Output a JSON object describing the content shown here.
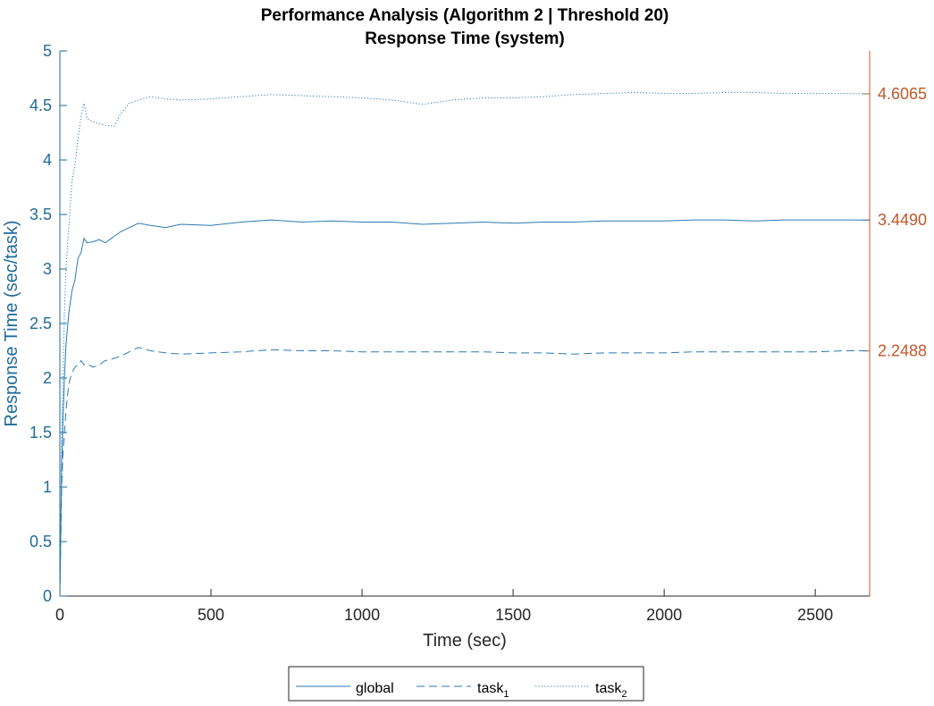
{
  "colors": {
    "series": "#2a7ab3",
    "left_axis": "#1f6b9a",
    "right_axis": "#c0582a",
    "bottom_axis": "#262626"
  },
  "chart_data": {
    "type": "line",
    "title": "Performance Analysis (Algorithm 2 | Threshold 20)",
    "subtitle": "Response Time (system)",
    "xlabel": "Time (sec)",
    "ylabel": "Response Time (sec/task)",
    "xlim": [
      0,
      2680
    ],
    "ylim": [
      0,
      5
    ],
    "grid": false,
    "legend_position": "bottom-outside",
    "x_ticks": [
      0,
      500,
      1000,
      1500,
      2000,
      2500
    ],
    "x_tick_labels": [
      "0",
      "500",
      "1000",
      "1500",
      "2000",
      "2500"
    ],
    "y_ticks": [
      0,
      0.5,
      1,
      1.5,
      2,
      2.5,
      3,
      3.5,
      4,
      4.5,
      5
    ],
    "y_tick_labels": [
      "0",
      "0.5",
      "1",
      "1.5",
      "2",
      "2.5",
      "3",
      "3.5",
      "4",
      "4.5",
      "5"
    ],
    "right_axis": {
      "ticks": [
        2.2488,
        3.449,
        4.6065
      ],
      "tick_labels": [
        "2.2488",
        "3.4490",
        "4.6065"
      ]
    },
    "series": [
      {
        "name": "global",
        "style": "solid",
        "x": [
          0,
          3,
          6,
          10,
          15,
          20,
          30,
          40,
          50,
          60,
          70,
          80,
          90,
          110,
          130,
          150,
          180,
          200,
          230,
          260,
          300,
          350,
          400,
          500,
          600,
          700,
          800,
          900,
          1000,
          1100,
          1200,
          1300,
          1400,
          1500,
          1600,
          1700,
          1800,
          1900,
          2000,
          2100,
          2200,
          2300,
          2400,
          2500,
          2600,
          2680
        ],
        "y": [
          0,
          0.6,
          1.2,
          1.6,
          2.0,
          2.3,
          2.6,
          2.8,
          2.9,
          3.1,
          3.15,
          3.28,
          3.24,
          3.25,
          3.27,
          3.24,
          3.3,
          3.34,
          3.38,
          3.42,
          3.4,
          3.38,
          3.41,
          3.4,
          3.43,
          3.45,
          3.43,
          3.44,
          3.43,
          3.43,
          3.41,
          3.42,
          3.43,
          3.42,
          3.43,
          3.43,
          3.44,
          3.44,
          3.44,
          3.45,
          3.45,
          3.44,
          3.45,
          3.45,
          3.45,
          3.449
        ]
      },
      {
        "name": "task_1",
        "legend_base": "task",
        "legend_sub": "1",
        "style": "dashed",
        "x": [
          0,
          3,
          6,
          10,
          15,
          20,
          30,
          40,
          50,
          60,
          70,
          80,
          90,
          110,
          130,
          150,
          180,
          200,
          230,
          260,
          300,
          350,
          400,
          500,
          600,
          700,
          800,
          900,
          1000,
          1100,
          1200,
          1300,
          1400,
          1500,
          1600,
          1700,
          1800,
          1900,
          2000,
          2100,
          2200,
          2300,
          2400,
          2500,
          2600,
          2680
        ],
        "y": [
          0,
          0.5,
          1.0,
          1.3,
          1.5,
          1.7,
          1.95,
          2.05,
          2.1,
          2.12,
          2.16,
          2.12,
          2.13,
          2.1,
          2.12,
          2.16,
          2.18,
          2.2,
          2.24,
          2.28,
          2.25,
          2.23,
          2.22,
          2.23,
          2.24,
          2.26,
          2.25,
          2.25,
          2.24,
          2.24,
          2.24,
          2.24,
          2.24,
          2.23,
          2.23,
          2.22,
          2.23,
          2.23,
          2.23,
          2.24,
          2.24,
          2.24,
          2.24,
          2.24,
          2.25,
          2.2488
        ]
      },
      {
        "name": "task_2",
        "legend_base": "task",
        "legend_sub": "2",
        "style": "dotted",
        "x": [
          0,
          3,
          6,
          10,
          15,
          20,
          30,
          40,
          50,
          60,
          70,
          80,
          90,
          110,
          130,
          150,
          180,
          200,
          230,
          260,
          300,
          350,
          400,
          500,
          600,
          700,
          800,
          900,
          1000,
          1100,
          1200,
          1300,
          1400,
          1500,
          1600,
          1700,
          1800,
          1900,
          2000,
          2100,
          2200,
          2300,
          2400,
          2500,
          2600,
          2680
        ],
        "y": [
          0,
          0.7,
          1.4,
          2.0,
          2.6,
          3.0,
          3.4,
          3.8,
          3.95,
          4.2,
          4.4,
          4.52,
          4.38,
          4.35,
          4.33,
          4.32,
          4.31,
          4.42,
          4.52,
          4.55,
          4.58,
          4.56,
          4.55,
          4.56,
          4.58,
          4.6,
          4.59,
          4.58,
          4.57,
          4.55,
          4.51,
          4.55,
          4.57,
          4.57,
          4.58,
          4.6,
          4.61,
          4.62,
          4.61,
          4.61,
          4.62,
          4.62,
          4.61,
          4.61,
          4.61,
          4.6065
        ]
      }
    ]
  }
}
